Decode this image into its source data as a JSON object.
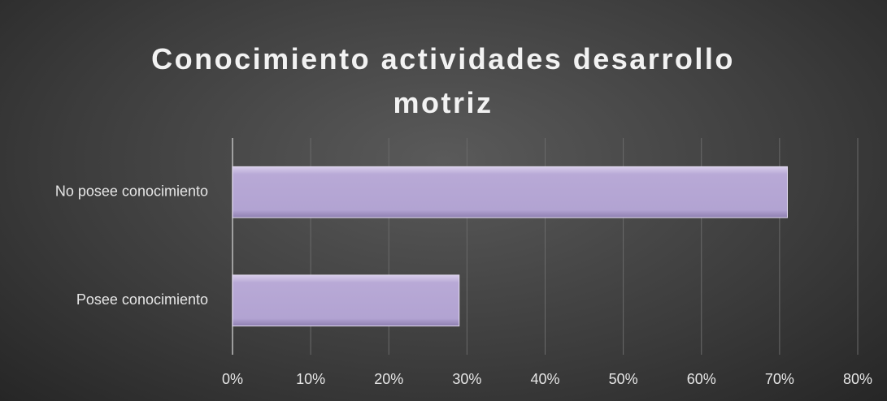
{
  "chart_data": {
    "type": "hbar",
    "title": "Conocimiento actividades desarrollo motriz",
    "categories": [
      "No posee conocimiento",
      "Posee conocimiento"
    ],
    "values": [
      71,
      29
    ],
    "color": "#b4a6d4",
    "xlim": [
      0,
      80
    ],
    "xticks": [
      {
        "value": 0,
        "label": "0%"
      },
      {
        "value": 10,
        "label": "10%"
      },
      {
        "value": 20,
        "label": "20%"
      },
      {
        "value": 30,
        "label": "30%"
      },
      {
        "value": 40,
        "label": "40%"
      },
      {
        "value": 50,
        "label": "50%"
      },
      {
        "value": 60,
        "label": "60%"
      },
      {
        "value": 70,
        "label": "70%"
      },
      {
        "value": 80,
        "label": "80%"
      }
    ],
    "grid": true
  }
}
